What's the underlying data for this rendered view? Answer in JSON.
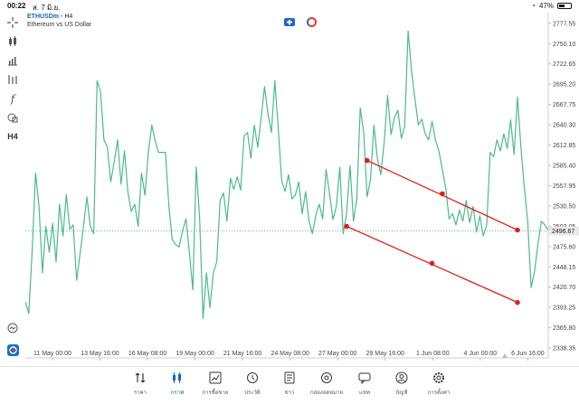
{
  "status": {
    "time": "00:22",
    "date": "ส. 7 มิ.ย.",
    "battery": "47%",
    "battery_level": 0.47
  },
  "symbol": {
    "name": "ETHUSDm",
    "sep": " • ",
    "timeframe": "H4",
    "description": "Ethereum vs US Dollar"
  },
  "toolbar": {
    "timeframe_label": "H4",
    "items": [
      "crosshair-icon",
      "candles-icon",
      "indicators-icon",
      "objects-icon",
      "function-icon",
      "shapes-icon",
      "timeframe-button",
      "zoom-icon",
      "app-logo-icon"
    ]
  },
  "chart_data": {
    "type": "line",
    "series": [
      {
        "values": [
          2401,
          2385,
          2471,
          2575,
          2530,
          2440,
          2503,
          2468,
          2507,
          2455,
          2533,
          2490,
          2546,
          2499,
          2505,
          2430,
          2465,
          2502,
          2543,
          2503,
          2493,
          2700,
          2685,
          2620,
          2610,
          2563,
          2590,
          2620,
          2560,
          2605,
          2550,
          2523,
          2533,
          2503,
          2575,
          2545,
          2603,
          2640,
          2618,
          2603,
          2603,
          2603,
          2530,
          2485,
          2478,
          2475,
          2497,
          2513,
          2468,
          2417,
          2583,
          2513,
          2378,
          2440,
          2393,
          2440,
          2455,
          2538,
          2548,
          2510,
          2568,
          2553,
          2570,
          2552,
          2625,
          2630,
          2595,
          2640,
          2610,
          2650,
          2692,
          2655,
          2630,
          2700,
          2635,
          2565,
          2550,
          2573,
          2540,
          2545,
          2563,
          2520,
          2550,
          2510,
          2493,
          2518,
          2533,
          2513,
          2580,
          2548,
          2512,
          2530,
          2583,
          2493,
          2520,
          2585,
          2510,
          2540,
          2663,
          2630,
          2543,
          2567,
          2640,
          2595,
          2573,
          2617,
          2680,
          2627,
          2650,
          2660,
          2622,
          2638,
          2767,
          2713,
          2675,
          2640,
          2648,
          2628,
          2620,
          2645,
          2620,
          2605,
          2580,
          2555,
          2513,
          2520,
          2505,
          2525,
          2510,
          2538,
          2508,
          2530,
          2495,
          2517,
          2490,
          2505,
          2603,
          2597,
          2620,
          2605,
          2628,
          2608,
          2647,
          2600,
          2678,
          2610,
          2555,
          2510,
          2420,
          2442,
          2480,
          2510,
          2505,
          2498
        ]
      }
    ],
    "x_tick_labels": [
      "11 May 00:00",
      "13 May 16:00",
      "16 May 08:00",
      "19 May 00:00",
      "21 May 16:00",
      "24 May 08:00",
      "27 May 00:00",
      "29 May 16:00",
      "1 Jun 08:00",
      "4 Jun 00:00",
      "6 Jun 16:00"
    ],
    "y_tick_labels": [
      "2777.55",
      "2750.10",
      "2722.65",
      "2695.20",
      "2667.75",
      "2640.30",
      "2612.85",
      "2585.40",
      "2557.95",
      "2530.50",
      "2503.05",
      "2475.60",
      "2448.15",
      "2420.70",
      "2393.25",
      "2365.80",
      "2338.35"
    ],
    "y_ticks": [
      2777.55,
      2750.1,
      2722.65,
      2695.2,
      2667.75,
      2640.3,
      2612.85,
      2585.4,
      2557.95,
      2530.5,
      2503.05,
      2475.6,
      2448.15,
      2420.7,
      2393.25,
      2365.8,
      2338.35
    ],
    "ylim": [
      2325,
      2792
    ],
    "current_price": 2496.67,
    "current_price_label": "2496.67",
    "line_color": "#4cba8c",
    "price_line_color": "#4cba8c",
    "channel_color": "#e0201b",
    "channel": {
      "upper": {
        "start_index": 100,
        "start_price": 2592,
        "mid_price": 2547,
        "end_price": 2498
      },
      "lower": {
        "start_index": 94,
        "start_price": 2503,
        "mid_price": 2453,
        "end_price": 2400
      },
      "end_index": 144
    }
  },
  "tabs": [
    {
      "label": "ราคา",
      "icon": "quotes-icon"
    },
    {
      "label": "กราฟ",
      "icon": "chart-icon",
      "active": true
    },
    {
      "label": "การซื้อขาย",
      "icon": "trade-icon"
    },
    {
      "label": "ประวัติ",
      "icon": "history-icon"
    },
    {
      "label": "ข่าว",
      "icon": "news-icon"
    },
    {
      "label": "กล่องจดหมาย",
      "icon": "mailbox-icon"
    },
    {
      "label": "แชท",
      "icon": "chat-icon"
    },
    {
      "label": "บัญชี",
      "icon": "account-icon"
    },
    {
      "label": "การตั้งค่า",
      "icon": "settings-icon"
    }
  ]
}
